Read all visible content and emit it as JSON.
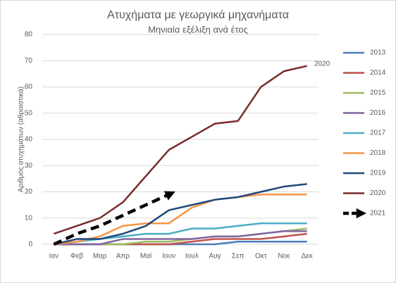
{
  "chart_data": {
    "type": "line",
    "title": "Ατυχήματα με γεωργικά μηχανήματα",
    "subtitle": "Μηνιαία εξέλιξη ανά έτος",
    "y_label": "Αριθμός ατυχημάτων (αθροιστικά)",
    "annotation": "2020",
    "categories": [
      "Ιαν",
      "Φεβ",
      "Μαρ",
      "Απρ",
      "Μαϊ",
      "Ιουν",
      "Ιουλ",
      "Αυγ",
      "Σεπ",
      "Οκτ",
      "Νοε",
      "Δεκ"
    ],
    "ylim": [
      0,
      80
    ],
    "yticks": [
      0,
      10,
      20,
      30,
      40,
      50,
      60,
      70,
      80
    ],
    "grid": true,
    "series": [
      {
        "name": "2013",
        "color": "#4a7ebb",
        "values": [
          0,
          0,
          0,
          0,
          0,
          0,
          0,
          0,
          1,
          1,
          1,
          1
        ]
      },
      {
        "name": "2014",
        "color": "#c0504d",
        "values": [
          0,
          0,
          0,
          0,
          0,
          0,
          1,
          2,
          2,
          2,
          3,
          4
        ]
      },
      {
        "name": "2015",
        "color": "#9bbb59",
        "values": [
          0,
          0,
          0,
          0,
          1,
          1,
          2,
          3,
          3,
          4,
          5,
          6
        ]
      },
      {
        "name": "2016",
        "color": "#8064a2",
        "values": [
          0,
          0,
          0,
          2,
          2,
          2,
          2,
          3,
          3,
          4,
          5,
          5
        ]
      },
      {
        "name": "2017",
        "color": "#4bacc6",
        "values": [
          0,
          1,
          2,
          3,
          4,
          4,
          6,
          6,
          7,
          8,
          8,
          8
        ]
      },
      {
        "name": "2018",
        "color": "#f79646",
        "values": [
          0,
          1,
          3,
          7,
          8,
          8,
          14,
          17,
          18,
          19,
          19,
          19
        ]
      },
      {
        "name": "2019",
        "color": "#1f497d",
        "values": [
          0,
          2,
          2,
          4,
          7,
          13,
          15,
          17,
          18,
          20,
          22,
          23
        ]
      },
      {
        "name": "2020",
        "color": "#772c2a",
        "values": [
          4,
          7,
          10,
          16,
          26,
          36,
          41,
          46,
          47,
          60,
          66,
          68
        ]
      },
      {
        "name": "2021",
        "color": "#000000",
        "dashed": true,
        "values": [
          0,
          4,
          7,
          11,
          15,
          19,
          null,
          null,
          null,
          null,
          null,
          null
        ]
      }
    ]
  }
}
